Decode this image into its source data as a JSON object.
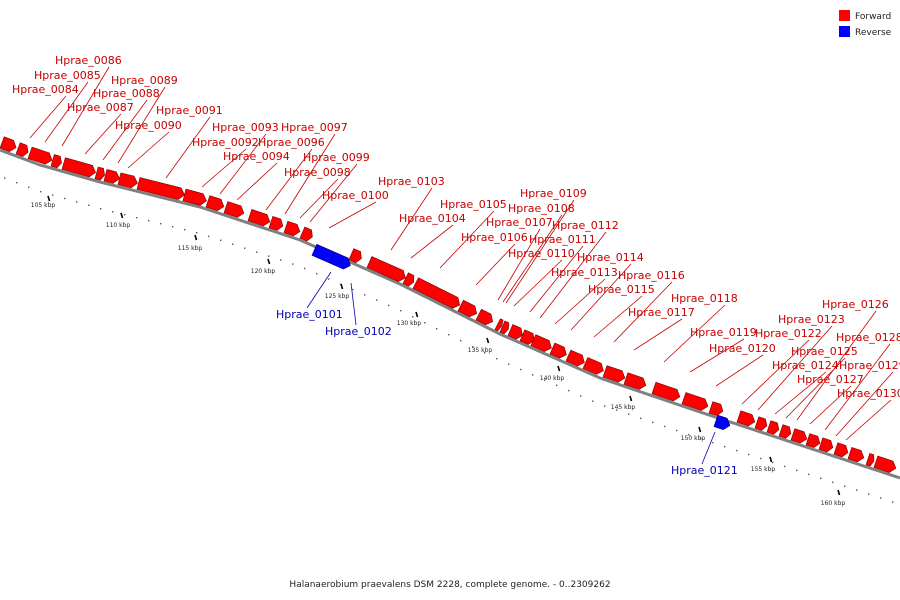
{
  "caption": "Halanaerobium praevalens DSM 2228, complete genome. - 0..2309262",
  "legend": {
    "forward_label": "Forward",
    "forward_color": "#ff0000",
    "reverse_label": "Reverse",
    "reverse_color": "#0000ff"
  },
  "colors": {
    "forward_text": "#c80000",
    "reverse_text": "#0000b4",
    "backbone": "#808080",
    "tick": "#000000"
  },
  "axis": {
    "unit": "kbp",
    "tick_labels": [
      "105 kbp",
      "110 kbp",
      "115 kbp",
      "120 kbp",
      "125 kbp",
      "130 kbp",
      "135 kbp",
      "140 kbp",
      "145 kbp",
      "150 kbp",
      "155 kbp",
      "160 kbp"
    ]
  },
  "genes": [
    {
      "label": "Hprae_0084",
      "strand": "forward"
    },
    {
      "label": "Hprae_0085",
      "strand": "forward"
    },
    {
      "label": "Hprae_0086",
      "strand": "forward"
    },
    {
      "label": "Hprae_0087",
      "strand": "forward"
    },
    {
      "label": "Hprae_0088",
      "strand": "forward"
    },
    {
      "label": "Hprae_0089",
      "strand": "forward"
    },
    {
      "label": "Hprae_0090",
      "strand": "forward"
    },
    {
      "label": "Hprae_0091",
      "strand": "forward"
    },
    {
      "label": "Hprae_0092",
      "strand": "forward"
    },
    {
      "label": "Hprae_0093",
      "strand": "forward"
    },
    {
      "label": "Hprae_0094",
      "strand": "forward"
    },
    {
      "label": "Hprae_0096",
      "strand": "forward"
    },
    {
      "label": "Hprae_0097",
      "strand": "forward"
    },
    {
      "label": "Hprae_0098",
      "strand": "forward"
    },
    {
      "label": "Hprae_0099",
      "strand": "forward"
    },
    {
      "label": "Hprae_0100",
      "strand": "forward"
    },
    {
      "label": "Hprae_0101",
      "strand": "reverse"
    },
    {
      "label": "Hprae_0102",
      "strand": "reverse"
    },
    {
      "label": "Hprae_0103",
      "strand": "forward"
    },
    {
      "label": "Hprae_0104",
      "strand": "forward"
    },
    {
      "label": "Hprae_0105",
      "strand": "forward"
    },
    {
      "label": "Hprae_0106",
      "strand": "forward"
    },
    {
      "label": "Hprae_0107",
      "strand": "forward"
    },
    {
      "label": "Hprae_0108",
      "strand": "forward"
    },
    {
      "label": "Hprae_0109",
      "strand": "forward"
    },
    {
      "label": "Hprae_0110",
      "strand": "forward"
    },
    {
      "label": "Hprae_0111",
      "strand": "forward"
    },
    {
      "label": "Hprae_0112",
      "strand": "forward"
    },
    {
      "label": "Hprae_0113",
      "strand": "forward"
    },
    {
      "label": "Hprae_0114",
      "strand": "forward"
    },
    {
      "label": "Hprae_0115",
      "strand": "forward"
    },
    {
      "label": "Hprae_0116",
      "strand": "forward"
    },
    {
      "label": "Hprae_0117",
      "strand": "forward"
    },
    {
      "label": "Hprae_0118",
      "strand": "forward"
    },
    {
      "label": "Hprae_0119",
      "strand": "forward"
    },
    {
      "label": "Hprae_0120",
      "strand": "forward"
    },
    {
      "label": "Hprae_0121",
      "strand": "reverse"
    },
    {
      "label": "Hprae_0122",
      "strand": "forward"
    },
    {
      "label": "Hprae_0123",
      "strand": "forward"
    },
    {
      "label": "Hprae_0124",
      "strand": "forward"
    },
    {
      "label": "Hprae_0125",
      "strand": "forward"
    },
    {
      "label": "Hprae_0126",
      "strand": "forward"
    },
    {
      "label": "Hprae_0127",
      "strand": "forward"
    },
    {
      "label": "Hprae_0128",
      "strand": "forward"
    },
    {
      "label": "Hprae_0129",
      "strand": "forward"
    },
    {
      "label": "Hprae_0130",
      "strand": "forward"
    }
  ]
}
